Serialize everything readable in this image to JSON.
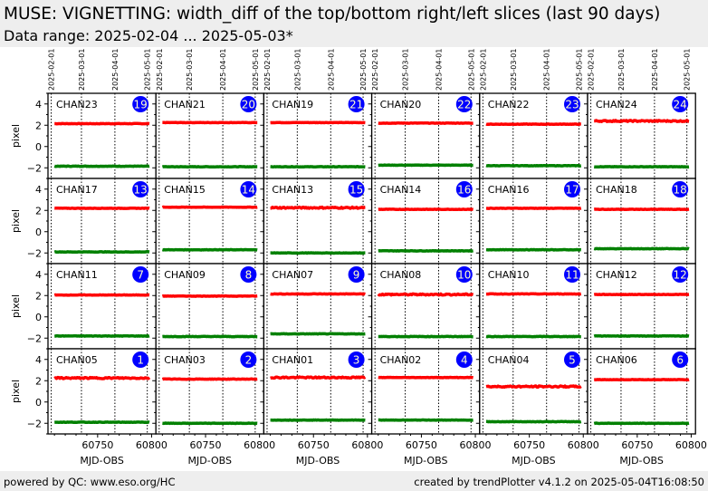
{
  "header": {
    "title": "MUSE: VIGNETTING: width_diff of the top/bottom right/left slices (last 90 days)",
    "subtitle": "Data range: 2025-02-04 ... 2025-05-03*"
  },
  "footer": {
    "left": "powered by QC: www.eso.org/HC",
    "right": "created by trendPlotter v4.1.2 on 2025-05-04T16:08:50"
  },
  "colors": {
    "top_series": "#ff0000",
    "bottom_series": "#008000",
    "badge": "#0000ff",
    "badge_text": "#ffffcc"
  },
  "chart_data": {
    "type": "scatter",
    "layout": "grid 4 rows x 6 columns",
    "xlabel": "MJD-OBS",
    "ylabel": "pixel",
    "xlim": [
      60704,
      60804
    ],
    "ylim": [
      -3,
      5
    ],
    "x_ticks": [
      60750,
      60800
    ],
    "y_ticks": [
      4,
      2,
      0,
      -2
    ],
    "date_ticks": [
      {
        "label": "2025-02-01",
        "mjd": 60707
      },
      {
        "label": "2025-03-01",
        "mjd": 60735
      },
      {
        "label": "2025-04-01",
        "mjd": 60766
      },
      {
        "label": "2025-05-01",
        "mjd": 60796
      }
    ],
    "x_range_data": [
      60710,
      60798
    ],
    "grid": "vertical dotted lines at date ticks",
    "panels": [
      {
        "name": "CHAN23",
        "badge": "19",
        "top": 2.15,
        "bottom": -1.85
      },
      {
        "name": "CHAN21",
        "badge": "20",
        "top": 2.25,
        "bottom": -1.9
      },
      {
        "name": "CHAN19",
        "badge": "21",
        "top": 2.25,
        "bottom": -1.9
      },
      {
        "name": "CHAN20",
        "badge": "22",
        "top": 2.2,
        "bottom": -1.75
      },
      {
        "name": "CHAN22",
        "badge": "23",
        "top": 2.1,
        "bottom": -1.8
      },
      {
        "name": "CHAN24",
        "badge": "24",
        "top": 2.4,
        "bottom": -1.9
      },
      {
        "name": "CHAN17",
        "badge": "13",
        "top": 2.2,
        "bottom": -1.9
      },
      {
        "name": "CHAN15",
        "badge": "14",
        "top": 2.3,
        "bottom": -1.7
      },
      {
        "name": "CHAN13",
        "badge": "15",
        "top": 2.25,
        "bottom": -2.0
      },
      {
        "name": "CHAN14",
        "badge": "16",
        "top": 2.1,
        "bottom": -1.8
      },
      {
        "name": "CHAN16",
        "badge": "17",
        "top": 2.2,
        "bottom": -1.7
      },
      {
        "name": "CHAN18",
        "badge": "18",
        "top": 2.1,
        "bottom": -1.6
      },
      {
        "name": "CHAN11",
        "badge": "7",
        "top": 2.05,
        "bottom": -1.8
      },
      {
        "name": "CHAN09",
        "badge": "8",
        "top": 1.95,
        "bottom": -1.85
      },
      {
        "name": "CHAN07",
        "badge": "9",
        "top": 2.15,
        "bottom": -1.6
      },
      {
        "name": "CHAN08",
        "badge": "10",
        "top": 2.1,
        "bottom": -1.85
      },
      {
        "name": "CHAN10",
        "badge": "11",
        "top": 2.15,
        "bottom": -1.85
      },
      {
        "name": "CHAN12",
        "badge": "12",
        "top": 2.1,
        "bottom": -1.8
      },
      {
        "name": "CHAN05",
        "badge": "1",
        "top": 2.25,
        "bottom": -1.9
      },
      {
        "name": "CHAN03",
        "badge": "2",
        "top": 2.15,
        "bottom": -2.0
      },
      {
        "name": "CHAN01",
        "badge": "3",
        "top": 2.3,
        "bottom": -1.7
      },
      {
        "name": "CHAN02",
        "badge": "4",
        "top": 2.3,
        "bottom": -1.7
      },
      {
        "name": "CHAN04",
        "badge": "5",
        "top": 1.45,
        "bottom": -1.85
      },
      {
        "name": "CHAN06",
        "badge": "6",
        "top": 2.1,
        "bottom": -2.0
      }
    ]
  }
}
